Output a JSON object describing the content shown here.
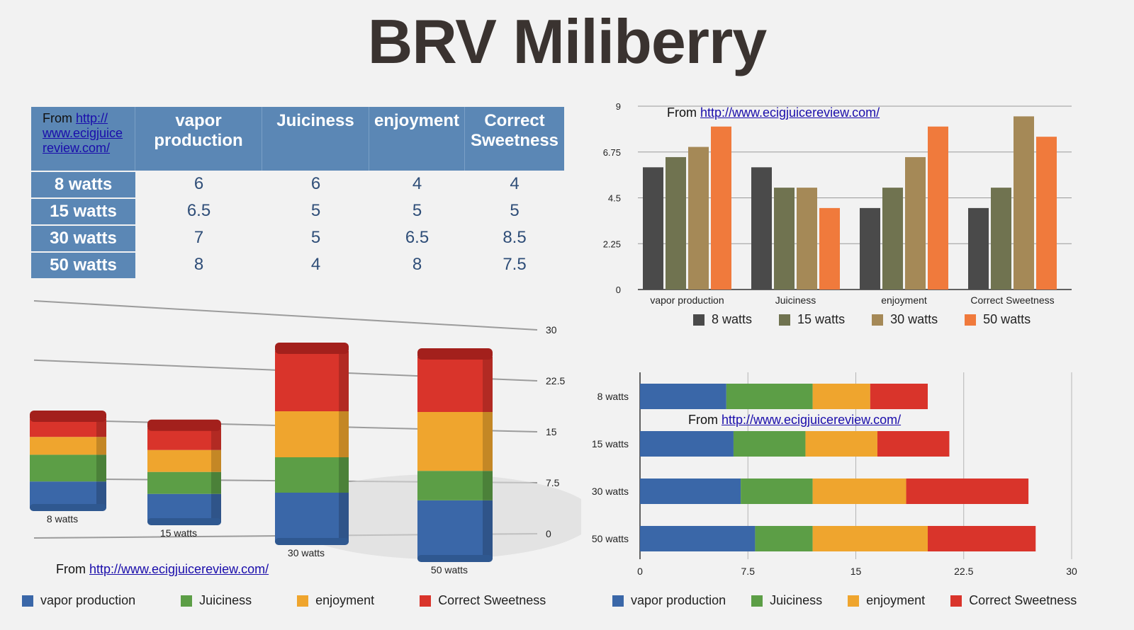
{
  "title": "BRV Miliberry",
  "source_prefix": "From ",
  "source_url": "http://www.ecigjuicereview.com/",
  "table": {
    "corner_from": "From ",
    "corner_link_lines": [
      "http://",
      "www.ecigjuice",
      "review.com/"
    ],
    "columns": [
      "vapor production",
      "Juiciness",
      "enjoyment",
      "Correct Sweetness"
    ],
    "column_lines": [
      [
        "vapor",
        "production"
      ],
      [
        "Juiciness"
      ],
      [
        "enjoyment"
      ],
      [
        "Correct",
        "Sweetness"
      ]
    ],
    "rows": [
      {
        "label": "8 watts",
        "values": [
          "6",
          "6",
          "4",
          "4"
        ]
      },
      {
        "label": "15 watts",
        "values": [
          "6.5",
          "5",
          "5",
          "5"
        ]
      },
      {
        "label": "30 watts",
        "values": [
          "7",
          "5",
          "6.5",
          "8.5"
        ]
      },
      {
        "label": "50 watts",
        "values": [
          "8",
          "4",
          "8",
          "7.5"
        ]
      }
    ]
  },
  "colors": {
    "vapor": "#3a67a8",
    "juiciness": "#5c9e46",
    "enjoyment": "#efa52e",
    "sweetness": "#d9342b",
    "w8": "#4a4a4a",
    "w15": "#707350",
    "w30": "#a58957",
    "w50": "#f07a3c"
  },
  "chart_data": [
    {
      "type": "bar",
      "title": "",
      "categories": [
        "vapor production",
        "Juiciness",
        "enjoyment",
        "Correct Sweetness"
      ],
      "series": [
        {
          "name": "8 watts",
          "values": [
            6,
            6,
            4,
            4
          ]
        },
        {
          "name": "15 watts",
          "values": [
            6.5,
            5,
            5,
            5
          ]
        },
        {
          "name": "30 watts",
          "values": [
            7,
            5,
            6.5,
            8.5
          ]
        },
        {
          "name": "50 watts",
          "values": [
            8,
            4,
            8,
            7.5
          ]
        }
      ],
      "ylim": [
        0,
        9
      ],
      "yticks": [
        "0",
        "2.25",
        "4.5",
        "6.75",
        "9"
      ],
      "legend": "bottom",
      "grid": true,
      "annotation": "From http://www.ecigjuicereview.com/"
    },
    {
      "type": "bar",
      "orientation": "stacked-3d-column",
      "categories": [
        "8 watts",
        "15 watts",
        "30 watts",
        "50 watts"
      ],
      "series": [
        {
          "name": "vapor production",
          "values": [
            6,
            6.5,
            7,
            8
          ]
        },
        {
          "name": "Juiciness",
          "values": [
            6,
            5,
            5,
            4
          ]
        },
        {
          "name": "enjoyment",
          "values": [
            4,
            5,
            6.5,
            8
          ]
        },
        {
          "name": "Correct Sweetness",
          "values": [
            4,
            5,
            8.5,
            7.5
          ]
        }
      ],
      "ylim": [
        0,
        30
      ],
      "yticks": [
        "0",
        "7.5",
        "15",
        "22.5",
        "30"
      ],
      "legend": "bottom",
      "annotation": "From http://www.ecigjuicereview.com/"
    },
    {
      "type": "bar",
      "orientation": "stacked-horizontal",
      "categories": [
        "8 watts",
        "15 watts",
        "30 watts",
        "50 watts"
      ],
      "series": [
        {
          "name": "vapor production",
          "values": [
            6,
            6.5,
            7,
            8
          ]
        },
        {
          "name": "Juiciness",
          "values": [
            6,
            5,
            5,
            4
          ]
        },
        {
          "name": "enjoyment",
          "values": [
            4,
            5,
            6.5,
            8
          ]
        },
        {
          "name": "Correct Sweetness",
          "values": [
            4,
            5,
            8.5,
            7.5
          ]
        }
      ],
      "xlim": [
        0,
        30
      ],
      "xticks": [
        "0",
        "7.5",
        "15",
        "22.5",
        "30"
      ],
      "legend": "bottom",
      "grid": true,
      "annotation": "From http://www.ecigjuicereview.com/"
    }
  ]
}
